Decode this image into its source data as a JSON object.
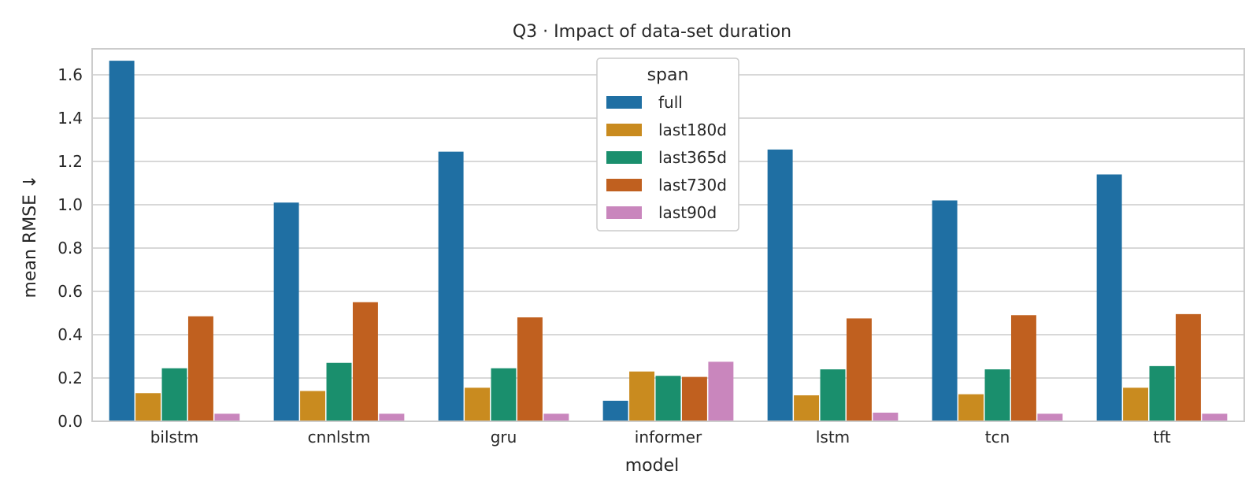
{
  "chart_data": {
    "type": "bar",
    "title": "Q3 · Impact of data-set duration",
    "xlabel": "model",
    "ylabel": "mean RMSE ↓",
    "ylim": [
      0,
      1.72
    ],
    "yticks": [
      "0.0",
      "0.2",
      "0.4",
      "0.6",
      "0.8",
      "1.0",
      "1.2",
      "1.4",
      "1.6"
    ],
    "grid": true,
    "legend": {
      "title": "span",
      "placement": "top-center"
    },
    "categories": [
      "bilstm",
      "cnnlstm",
      "gru",
      "informer",
      "lstm",
      "tcn",
      "tft"
    ],
    "series": [
      {
        "name": "full",
        "color": "#1f6fa3",
        "values": [
          1.665,
          1.01,
          1.245,
          0.095,
          1.255,
          1.02,
          1.14
        ]
      },
      {
        "name": "last180d",
        "color": "#c98b1f",
        "values": [
          0.13,
          0.14,
          0.155,
          0.23,
          0.12,
          0.125,
          0.155
        ]
      },
      {
        "name": "last365d",
        "color": "#1a8f6d",
        "values": [
          0.245,
          0.27,
          0.245,
          0.21,
          0.24,
          0.24,
          0.255
        ]
      },
      {
        "name": "last730d",
        "color": "#c0601f",
        "values": [
          0.485,
          0.55,
          0.48,
          0.205,
          0.475,
          0.49,
          0.495
        ]
      },
      {
        "name": "last90d",
        "color": "#c986bd",
        "values": [
          0.035,
          0.035,
          0.035,
          0.275,
          0.04,
          0.035,
          0.035
        ]
      }
    ]
  }
}
